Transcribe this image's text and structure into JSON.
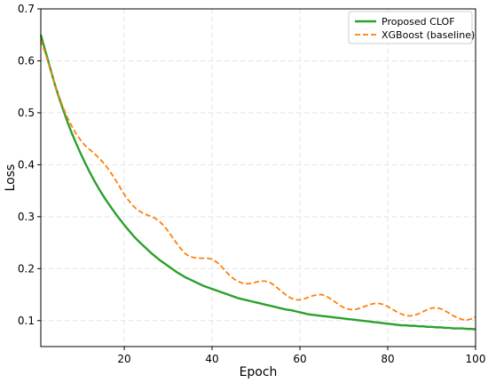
{
  "chart_data": {
    "type": "line",
    "title": "",
    "xlabel": "Epoch",
    "ylabel": "Loss",
    "xlim": [
      1,
      100
    ],
    "ylim": [
      0.05,
      0.7
    ],
    "xticks": [
      20,
      40,
      60,
      80,
      100
    ],
    "xtick_labels": [
      "20",
      "40",
      "60",
      "80",
      "100"
    ],
    "yticks": [
      0.1,
      0.2,
      0.3,
      0.4,
      0.5,
      0.6,
      0.7
    ],
    "ytick_labels": [
      "0.1",
      "0.2",
      "0.3",
      "0.4",
      "0.5",
      "0.6",
      "0.7"
    ],
    "grid": true,
    "legend_position": "top-right",
    "x": [
      1,
      2,
      3,
      4,
      5,
      6,
      7,
      8,
      9,
      10,
      11,
      12,
      13,
      14,
      15,
      16,
      17,
      18,
      19,
      20,
      21,
      22,
      23,
      24,
      25,
      26,
      27,
      28,
      29,
      30,
      31,
      32,
      33,
      34,
      35,
      36,
      37,
      38,
      39,
      40,
      41,
      42,
      43,
      44,
      45,
      46,
      47,
      48,
      49,
      50,
      51,
      52,
      53,
      54,
      55,
      56,
      57,
      58,
      59,
      60,
      61,
      62,
      63,
      64,
      65,
      66,
      67,
      68,
      69,
      70,
      71,
      72,
      73,
      74,
      75,
      76,
      77,
      78,
      79,
      80,
      81,
      82,
      83,
      84,
      85,
      86,
      87,
      88,
      89,
      90,
      91,
      92,
      93,
      94,
      95,
      96,
      97,
      98,
      99,
      100
    ],
    "series": [
      {
        "name": "Proposed CLOF",
        "color": "#2ca02c",
        "style": "solid",
        "values": [
          0.65,
          0.62,
          0.59,
          0.56,
          0.533,
          0.508,
          0.484,
          0.462,
          0.442,
          0.423,
          0.405,
          0.388,
          0.372,
          0.357,
          0.343,
          0.33,
          0.318,
          0.306,
          0.295,
          0.284,
          0.274,
          0.264,
          0.255,
          0.247,
          0.239,
          0.231,
          0.224,
          0.217,
          0.211,
          0.205,
          0.199,
          0.193,
          0.188,
          0.183,
          0.179,
          0.175,
          0.171,
          0.167,
          0.164,
          0.161,
          0.158,
          0.155,
          0.152,
          0.149,
          0.146,
          0.143,
          0.141,
          0.139,
          0.137,
          0.135,
          0.133,
          0.131,
          0.129,
          0.127,
          0.125,
          0.123,
          0.121,
          0.12,
          0.118,
          0.116,
          0.114,
          0.112,
          0.111,
          0.11,
          0.109,
          0.108,
          0.107,
          0.106,
          0.105,
          0.104,
          0.103,
          0.102,
          0.101,
          0.1,
          0.099,
          0.098,
          0.097,
          0.096,
          0.095,
          0.094,
          0.093,
          0.092,
          0.091,
          0.091,
          0.09,
          0.09,
          0.089,
          0.089,
          0.088,
          0.088,
          0.087,
          0.087,
          0.086,
          0.086,
          0.085,
          0.085,
          0.085,
          0.084,
          0.084,
          0.083
        ]
      },
      {
        "name": "XGBoost (baseline)",
        "color": "#ff7f0e",
        "style": "dashed",
        "values": [
          0.64,
          0.615,
          0.588,
          0.56,
          0.535,
          0.512,
          0.492,
          0.475,
          0.46,
          0.448,
          0.438,
          0.43,
          0.423,
          0.415,
          0.406,
          0.396,
          0.384,
          0.371,
          0.357,
          0.343,
          0.331,
          0.321,
          0.313,
          0.308,
          0.304,
          0.301,
          0.297,
          0.291,
          0.283,
          0.272,
          0.26,
          0.248,
          0.237,
          0.228,
          0.223,
          0.221,
          0.22,
          0.22,
          0.22,
          0.218,
          0.213,
          0.205,
          0.196,
          0.187,
          0.18,
          0.175,
          0.172,
          0.171,
          0.172,
          0.174,
          0.176,
          0.176,
          0.174,
          0.169,
          0.162,
          0.155,
          0.148,
          0.143,
          0.14,
          0.14,
          0.142,
          0.145,
          0.148,
          0.15,
          0.15,
          0.147,
          0.142,
          0.136,
          0.13,
          0.125,
          0.122,
          0.121,
          0.122,
          0.125,
          0.128,
          0.131,
          0.133,
          0.133,
          0.131,
          0.127,
          0.122,
          0.117,
          0.113,
          0.11,
          0.109,
          0.11,
          0.113,
          0.117,
          0.121,
          0.124,
          0.125,
          0.123,
          0.119,
          0.114,
          0.109,
          0.105,
          0.102,
          0.101,
          0.103,
          0.107
        ]
      }
    ]
  }
}
